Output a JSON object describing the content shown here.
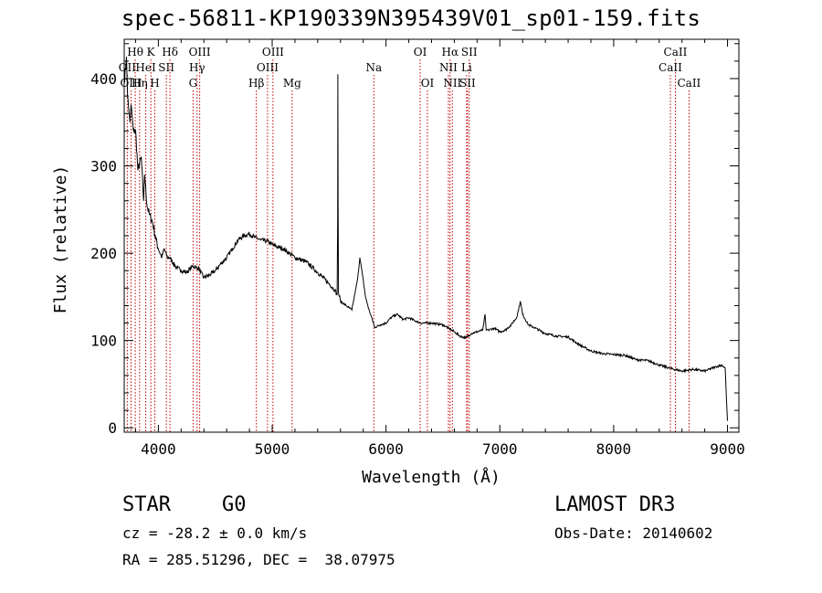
{
  "title": "spec-56811-KP190339N395439V01_sp01-159.fits",
  "footer": {
    "class_label": "STAR",
    "subclass": "G0",
    "survey": "LAMOST DR3",
    "cz": "cz = -28.2 ± 0.0 km/s",
    "obs_date": "Obs-Date: 20140602",
    "coords": "RA = 285.51296, DEC =  38.07975"
  },
  "colors": {
    "line": "#000000",
    "marker": "#c00000"
  },
  "chart_data": {
    "type": "line",
    "xlabel": "Wavelength (Å)",
    "ylabel": "Flux (relative)",
    "xlim": [
      3700,
      9100
    ],
    "ylim": [
      -5,
      445
    ],
    "xticks": [
      4000,
      5000,
      6000,
      7000,
      8000,
      9000
    ],
    "yticks": [
      0,
      100,
      200,
      300,
      400
    ],
    "series": [
      {
        "values": [
          [
            3700,
            395
          ],
          [
            3720,
            425
          ],
          [
            3730,
            380
          ],
          [
            3750,
            350
          ],
          [
            3760,
            370
          ],
          [
            3780,
            340
          ],
          [
            3800,
            340
          ],
          [
            3820,
            295
          ],
          [
            3850,
            310
          ],
          [
            3870,
            260
          ],
          [
            3880,
            290
          ],
          [
            3900,
            255
          ],
          [
            3920,
            245
          ],
          [
            3950,
            235
          ],
          [
            3980,
            215
          ],
          [
            4000,
            205
          ],
          [
            4030,
            195
          ],
          [
            4050,
            205
          ],
          [
            4080,
            195
          ],
          [
            4100,
            195
          ],
          [
            4150,
            185
          ],
          [
            4200,
            180
          ],
          [
            4250,
            178
          ],
          [
            4300,
            185
          ],
          [
            4350,
            183
          ],
          [
            4400,
            172
          ],
          [
            4450,
            175
          ],
          [
            4500,
            180
          ],
          [
            4550,
            188
          ],
          [
            4600,
            195
          ],
          [
            4650,
            205
          ],
          [
            4700,
            215
          ],
          [
            4750,
            220
          ],
          [
            4800,
            222
          ],
          [
            4850,
            218
          ],
          [
            4900,
            215
          ],
          [
            4950,
            214
          ],
          [
            5000,
            210
          ],
          [
            5050,
            207
          ],
          [
            5100,
            205
          ],
          [
            5150,
            200
          ],
          [
            5200,
            195
          ],
          [
            5300,
            190
          ],
          [
            5400,
            178
          ],
          [
            5500,
            165
          ],
          [
            5550,
            158
          ],
          [
            5570,
            152
          ],
          [
            5575,
            240
          ],
          [
            5577,
            405
          ],
          [
            5579,
            250
          ],
          [
            5582,
            155
          ],
          [
            5600,
            145
          ],
          [
            5650,
            140
          ],
          [
            5700,
            135
          ],
          [
            5750,
            170
          ],
          [
            5770,
            195
          ],
          [
            5790,
            178
          ],
          [
            5820,
            150
          ],
          [
            5850,
            135
          ],
          [
            5870,
            128
          ],
          [
            5900,
            115
          ],
          [
            5950,
            118
          ],
          [
            6000,
            120
          ],
          [
            6050,
            127
          ],
          [
            6100,
            130
          ],
          [
            6150,
            124
          ],
          [
            6200,
            126
          ],
          [
            6300,
            120
          ],
          [
            6400,
            120
          ],
          [
            6500,
            118
          ],
          [
            6563,
            113
          ],
          [
            6600,
            110
          ],
          [
            6650,
            105
          ],
          [
            6700,
            103
          ],
          [
            6750,
            108
          ],
          [
            6800,
            110
          ],
          [
            6850,
            112
          ],
          [
            6870,
            130
          ],
          [
            6880,
            112
          ],
          [
            6900,
            112
          ],
          [
            6950,
            114
          ],
          [
            7000,
            110
          ],
          [
            7050,
            112
          ],
          [
            7100,
            118
          ],
          [
            7150,
            127
          ],
          [
            7180,
            145
          ],
          [
            7200,
            130
          ],
          [
            7250,
            118
          ],
          [
            7300,
            115
          ],
          [
            7400,
            108
          ],
          [
            7500,
            105
          ],
          [
            7600,
            104
          ],
          [
            7700,
            95
          ],
          [
            7800,
            88
          ],
          [
            7900,
            85
          ],
          [
            8000,
            84
          ],
          [
            8100,
            83
          ],
          [
            8200,
            78
          ],
          [
            8300,
            77
          ],
          [
            8400,
            72
          ],
          [
            8500,
            68
          ],
          [
            8600,
            65
          ],
          [
            8700,
            67
          ],
          [
            8800,
            65
          ],
          [
            8900,
            70
          ],
          [
            8950,
            72
          ],
          [
            8980,
            68
          ],
          [
            8990,
            35
          ],
          [
            9000,
            8
          ]
        ]
      }
    ],
    "annotations": [
      {
        "label": "Hθ",
        "x": 3797,
        "row": 1
      },
      {
        "label": "K",
        "x": 3934,
        "row": 1
      },
      {
        "label": "Hδ",
        "x": 4102,
        "row": 1
      },
      {
        "label": "OIII",
        "x": 4363,
        "row": 1
      },
      {
        "label": "OIII",
        "x": 5007,
        "row": 1
      },
      {
        "label": "OI",
        "x": 6300,
        "row": 1
      },
      {
        "label": "Hα",
        "x": 6563,
        "row": 1
      },
      {
        "label": "SII",
        "x": 6731,
        "row": 1
      },
      {
        "label": "CaII",
        "x": 8542,
        "row": 1
      },
      {
        "label": "OII",
        "x": 3727,
        "row": 2
      },
      {
        "label": "HeI",
        "x": 3889,
        "row": 2
      },
      {
        "label": "SII",
        "x": 4070,
        "row": 2
      },
      {
        "label": "Hγ",
        "x": 4340,
        "row": 2
      },
      {
        "label": "OIII",
        "x": 4959,
        "row": 2
      },
      {
        "label": "Na",
        "x": 5893,
        "row": 2
      },
      {
        "label": "NII",
        "x": 6548,
        "row": 2
      },
      {
        "label": "Li",
        "x": 6708,
        "row": 2
      },
      {
        "label": "CaII",
        "x": 8498,
        "row": 2
      },
      {
        "label": "OIII",
        "x": 3760,
        "row": 3
      },
      {
        "label": "Hη",
        "x": 3835,
        "row": 3
      },
      {
        "label": "H",
        "x": 3969,
        "row": 3
      },
      {
        "label": "G",
        "x": 4305,
        "row": 3
      },
      {
        "label": "Hβ",
        "x": 4861,
        "row": 3
      },
      {
        "label": "Mg",
        "x": 5175,
        "row": 3
      },
      {
        "label": "OI",
        "x": 6364,
        "row": 3
      },
      {
        "label": "NII",
        "x": 6583,
        "row": 3
      },
      {
        "label": "SII",
        "x": 6716,
        "row": 3
      },
      {
        "label": "CaII",
        "x": 8662,
        "row": 3
      }
    ]
  }
}
